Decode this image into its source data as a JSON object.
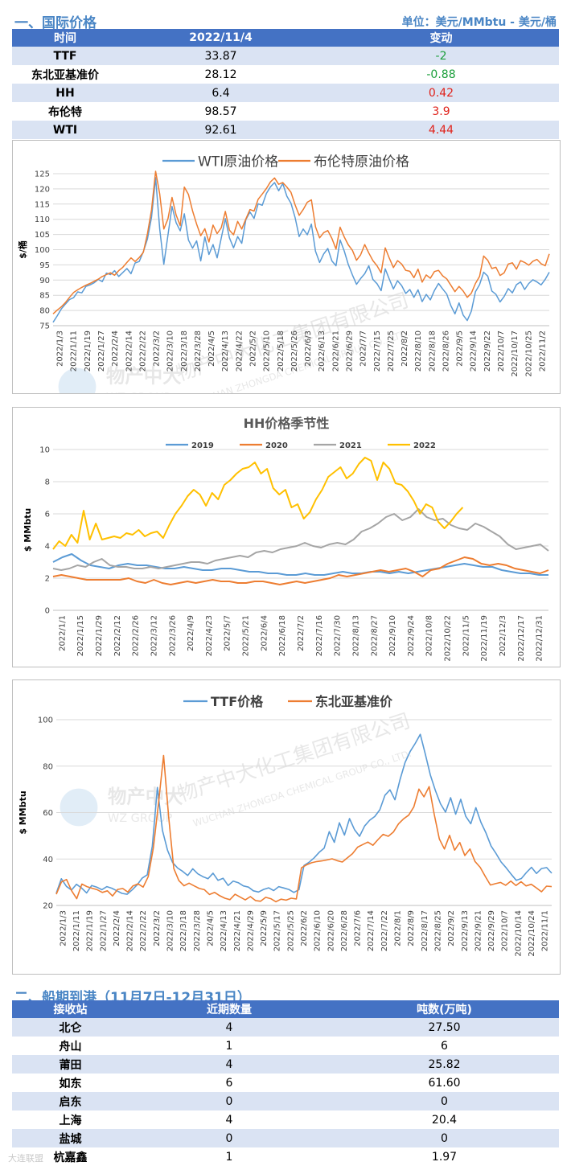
{
  "section1": {
    "title": "一、国际价格",
    "unit": "单位：美元/MMbtu - 美元/桶",
    "headers": [
      "时间",
      "2022/11/4",
      "变动"
    ],
    "rows": [
      {
        "name": "TTF",
        "value": "33.87",
        "change": "-2",
        "dir": "down"
      },
      {
        "name": "东北亚基准价",
        "value": "28.12",
        "change": "-0.88",
        "dir": "down"
      },
      {
        "name": "HH",
        "value": "6.4",
        "change": "0.42",
        "dir": "up"
      },
      {
        "name": "布伦特",
        "value": "98.57",
        "change": "3.9",
        "dir": "up"
      },
      {
        "name": "WTI",
        "value": "92.61",
        "change": "4.44",
        "dir": "up"
      }
    ]
  },
  "colors": {
    "up": "#e0221b",
    "down": "#1a9e3a",
    "blue": "#5b9bd5",
    "orange": "#ed7d31",
    "gray": "#a5a5a5",
    "yellow": "#ffc000"
  },
  "watermark": {
    "cn": "物产中大化工集团有限公司",
    "en": "WUCHAN ZHONGDA CHEMICAL GROUP CO., LTD.",
    "logo": "物产中大",
    "logo_en": "WZ GROUP"
  },
  "chart_data": [
    {
      "id": "oil",
      "type": "line",
      "title": "",
      "ylabel": "$/桶",
      "ylim": [
        75,
        125
      ],
      "yticks": [
        75,
        80,
        85,
        90,
        95,
        100,
        105,
        110,
        115,
        120,
        125
      ],
      "xlabels": [
        "2022/1/3",
        "2022/1/11",
        "2022/1/19",
        "2022/1/27",
        "2022/2/4",
        "2022/2/14",
        "2022/2/22",
        "2022/3/2",
        "2022/3/10",
        "2022/3/18",
        "2022/3/28",
        "2022/4/5",
        "2022/4/13",
        "2022/4/22",
        "2022/5/2",
        "2022/5/10",
        "2022/5/18",
        "2022/5/26",
        "2022/6/3",
        "2022/6/13",
        "2022/6/21",
        "2022/6/29",
        "2022/7/7",
        "2022/7/15",
        "2022/7/25",
        "2022/8/2",
        "2022/8/10",
        "2022/8/18",
        "2022/8/26",
        "2022/9/5",
        "2022/9/14",
        "2022/9/22",
        "2022/10/7",
        "2022/10/17",
        "2022/10/25",
        "2022/11/2"
      ],
      "series": [
        {
          "name": "WTI原油价格",
          "color": "#5b9bd5",
          "values": [
            76.1,
            78.2,
            80.5,
            82.1,
            83.6,
            84.2,
            86.1,
            85.8,
            87.9,
            88.4,
            89.1,
            90.2,
            89.5,
            92.3,
            91.8,
            93.1,
            91.2,
            92.5,
            93.8,
            92.1,
            95.6,
            96.1,
            99.3,
            103.5,
            110.6,
            123.7,
            106.8,
            95.2,
            104.7,
            114.2,
            108.9,
            106.2,
            111.8,
            103.2,
            100.5,
            102.9,
            96.3,
            104.2,
            98.4,
            101.7,
            97.3,
            103.8,
            110.2,
            103.9,
            100.6,
            104.3,
            102.1,
            109.9,
            112.4,
            110.3,
            115.1,
            114.6,
            118.5,
            120.7,
            122.1,
            119.4,
            121.8,
            117.6,
            115.3,
            110.6,
            104.3,
            106.8,
            104.9,
            108.4,
            99.5,
            95.8,
            98.6,
            100.4,
            96.3,
            94.7,
            103.2,
            99.6,
            95.1,
            91.7,
            88.6,
            90.5,
            92.1,
            94.7,
            90.2,
            88.8,
            86.5,
            93.7,
            90.3,
            87.1,
            89.8,
            88.2,
            85.6,
            86.9,
            84.3,
            86.8,
            82.9,
            85.3,
            83.5,
            86.6,
            88.9,
            87.1,
            85.4,
            81.6,
            78.9,
            82.5,
            78.5,
            76.7,
            79.8,
            86.2,
            88.5,
            92.6,
            91.3,
            86.4,
            85.3,
            82.8,
            84.6,
            87.2,
            85.8,
            88.5,
            89.4,
            86.9,
            88.9,
            90.1,
            89.4,
            88.4,
            90.2,
            92.6
          ]
        },
        {
          "name": "布伦特原油价格",
          "color": "#ed7d31",
          "values": [
            78.9,
            80.1,
            81.2,
            82.6,
            84.3,
            85.9,
            86.8,
            87.6,
            88.3,
            88.9,
            89.6,
            90.3,
            91.2,
            91.8,
            92.4,
            91.6,
            93.1,
            94.2,
            95.8,
            97.3,
            96.1,
            97.4,
            99.1,
            105.2,
            113.1,
            125.8,
            118.3,
            106.8,
            110.1,
            117.2,
            111.4,
            107.9,
            120.6,
            118.2,
            112.8,
            108.4,
            104.6,
            106.9,
            102.5,
            108.1,
            105.3,
            107.2,
            112.6,
            106.4,
            104.9,
            109.3,
            106.8,
            110.1,
            113.2,
            112.7,
            116.6,
            118.3,
            120.1,
            122.3,
            123.6,
            121.5,
            122.1,
            120.6,
            118.9,
            114.8,
            111.3,
            113.2,
            115.6,
            116.4,
            107.5,
            103.9,
            105.6,
            106.3,
            103.7,
            100.2,
            107.4,
            104.2,
            101.6,
            99.8,
            96.5,
            98.3,
            101.7,
            98.9,
            96.4,
            94.7,
            92.4,
            100.6,
            97.2,
            94.1,
            96.4,
            95.3,
            93.2,
            92.9,
            90.8,
            93.6,
            89.3,
            91.7,
            90.6,
            92.8,
            93.2,
            91.4,
            90.4,
            88.3,
            86.2,
            87.9,
            86.4,
            84.3,
            85.7,
            88.9,
            91.2,
            97.9,
            96.5,
            93.8,
            94.2,
            91.5,
            92.4,
            95.3,
            95.7,
            93.6,
            96.4,
            95.8,
            94.9,
            96.2,
            96.8,
            95.4,
            94.7,
            98.6
          ]
        }
      ]
    },
    {
      "id": "hh",
      "type": "line",
      "title": "HH价格季节性",
      "ylabel": "$ MMbtu",
      "ylim": [
        0,
        10
      ],
      "yticks": [
        0,
        2,
        4,
        6,
        8,
        10
      ],
      "xlabels": [
        "2022/1/1",
        "2022/1/15",
        "2022/1/29",
        "2022/2/12",
        "2022/2/26",
        "2022/3/12",
        "2022/3/26",
        "2022/4/9",
        "2022/4/23",
        "2022/5/7",
        "2022/5/21",
        "2022/6/4",
        "2022/6/18",
        "2022/7/2",
        "2022/7/16",
        "2022/7/30",
        "2022/8/13",
        "2022/8/27",
        "2022/9/10",
        "2022/9/24",
        "2022/10/8",
        "2022/10/22",
        "2022/11/5",
        "2022/11/19",
        "2022/12/3",
        "2022/12/17",
        "2022/12/31"
      ],
      "series": [
        {
          "name": "2019",
          "color": "#5b9bd5",
          "values": [
            3.0,
            3.3,
            3.5,
            3.1,
            2.8,
            2.7,
            2.6,
            2.8,
            2.9,
            2.8,
            2.8,
            2.7,
            2.6,
            2.6,
            2.7,
            2.6,
            2.5,
            2.5,
            2.6,
            2.6,
            2.5,
            2.4,
            2.4,
            2.3,
            2.3,
            2.2,
            2.2,
            2.3,
            2.2,
            2.2,
            2.3,
            2.4,
            2.3,
            2.3,
            2.4,
            2.4,
            2.3,
            2.4,
            2.3,
            2.4,
            2.5,
            2.6,
            2.7,
            2.8,
            2.9,
            2.8,
            2.7,
            2.7,
            2.5,
            2.4,
            2.3,
            2.3,
            2.2,
            2.2
          ]
        },
        {
          "name": "2020",
          "color": "#ed7d31",
          "values": [
            2.1,
            2.2,
            2.1,
            2.0,
            1.9,
            1.9,
            1.9,
            1.9,
            1.9,
            2.0,
            1.8,
            1.7,
            1.9,
            1.7,
            1.6,
            1.7,
            1.8,
            1.7,
            1.8,
            1.9,
            1.8,
            1.8,
            1.7,
            1.7,
            1.8,
            1.8,
            1.7,
            1.6,
            1.7,
            1.8,
            1.7,
            1.8,
            1.9,
            2.0,
            2.2,
            2.1,
            2.2,
            2.3,
            2.4,
            2.5,
            2.4,
            2.5,
            2.6,
            2.4,
            2.1,
            2.5,
            2.6,
            2.9,
            3.1,
            3.3,
            3.2,
            2.9,
            2.8,
            2.9,
            2.8,
            2.6,
            2.5,
            2.4,
            2.3,
            2.5
          ]
        },
        {
          "name": "2021",
          "color": "#a5a5a5",
          "values": [
            2.6,
            2.5,
            2.6,
            2.8,
            2.7,
            3.0,
            3.2,
            2.8,
            2.7,
            2.7,
            2.6,
            2.6,
            2.7,
            2.6,
            2.7,
            2.8,
            2.9,
            3.0,
            3.0,
            2.9,
            3.1,
            3.2,
            3.3,
            3.4,
            3.3,
            3.6,
            3.7,
            3.6,
            3.8,
            3.9,
            4.0,
            4.2,
            4.0,
            3.9,
            4.1,
            4.2,
            4.1,
            4.4,
            4.9,
            5.1,
            5.4,
            5.8,
            6.0,
            5.6,
            5.8,
            6.3,
            5.8,
            5.6,
            5.7,
            5.3,
            5.1,
            5.0,
            5.4,
            5.2,
            4.9,
            4.6,
            4.1,
            3.8,
            3.9,
            4.0,
            4.1,
            3.7
          ]
        },
        {
          "name": "2022",
          "color": "#ffc000",
          "values": [
            3.8,
            4.3,
            4.0,
            4.7,
            4.2,
            6.2,
            4.4,
            5.4,
            4.4,
            4.5,
            4.6,
            4.5,
            4.8,
            4.7,
            5.0,
            4.6,
            4.8,
            4.9,
            4.5,
            5.3,
            6.0,
            6.5,
            7.1,
            7.5,
            7.2,
            6.5,
            7.3,
            6.9,
            7.8,
            8.1,
            8.5,
            8.8,
            8.9,
            9.2,
            8.5,
            8.8,
            7.6,
            7.2,
            7.5,
            6.4,
            6.6,
            5.7,
            6.1,
            6.9,
            7.5,
            8.3,
            8.6,
            8.9,
            8.2,
            8.5,
            9.1,
            9.5,
            9.3,
            8.1,
            9.2,
            8.8,
            7.9,
            7.8,
            7.4,
            6.8,
            6.0,
            6.6,
            6.4,
            5.5,
            5.1,
            5.5,
            6.0,
            6.4
          ]
        }
      ]
    },
    {
      "id": "ttf",
      "type": "line",
      "title": "",
      "ylabel": "$ MMbtu",
      "ylim": [
        20,
        100
      ],
      "yticks": [
        20,
        40,
        60,
        80,
        100
      ],
      "xlabels": [
        "2022/1/3",
        "2022/1/11",
        "2022/1/19",
        "2022/1/27",
        "2022/2/4",
        "2022/2/14",
        "2022/2/22",
        "2022/3/2",
        "2022/3/10",
        "2022/3/18",
        "2022/3/28",
        "2022/4/5",
        "2022/4/13",
        "2022/4/21",
        "2022/4/29",
        "2022/5/9",
        "2022/5/17",
        "2022/5/25",
        "2022/6/2",
        "2022/6/10",
        "2022/6/20",
        "2022/6/28",
        "2022/7/6",
        "2022/7/14",
        "2022/7/22",
        "2022/8/1",
        "2022/8/9",
        "2022/8/17",
        "2022/8/25",
        "2022/9/2",
        "2022/9/13",
        "2022/9/21",
        "2022/9/29",
        "2022/10/7",
        "2022/10/14",
        "2022/10/24",
        "2022/11/1"
      ],
      "series": [
        {
          "name": "TTF价格",
          "color": "#5b9bd5",
          "values": [
            25.3,
            31.5,
            28.2,
            26.6,
            29.1,
            27.5,
            25.4,
            28.6,
            27.9,
            26.8,
            28.1,
            27.4,
            26.3,
            25.2,
            24.8,
            26.7,
            28.9,
            31.8,
            33.2,
            45.6,
            70.8,
            52.3,
            43.8,
            38.5,
            36.1,
            34.7,
            32.9,
            35.8,
            33.6,
            32.4,
            31.5,
            33.9,
            30.8,
            31.7,
            28.6,
            30.5,
            29.8,
            28.4,
            27.9,
            26.3,
            25.8,
            26.9,
            27.6,
            26.4,
            28.1,
            27.5,
            26.9,
            25.6,
            26.8,
            37.2,
            38.6,
            40.5,
            42.9,
            44.7,
            51.8,
            47.2,
            55.6,
            50.3,
            57.4,
            52.6,
            49.8,
            54.2,
            56.7,
            58.3,
            61.2,
            67.4,
            69.8,
            65.5,
            74.2,
            81.6,
            86.3,
            89.8,
            93.7,
            85.1,
            76.2,
            69.5,
            63.8,
            60.2,
            66.4,
            59.3,
            65.7,
            58.4,
            55.2,
            62.1,
            55.8,
            51.2,
            45.6,
            42.3,
            38.7,
            36.2,
            33.4,
            30.8,
            31.6,
            34.2,
            36.4,
            33.8,
            35.9,
            36.3,
            33.9
          ]
        },
        {
          "name": "东北亚基准价",
          "color": "#ed7d31",
          "values": [
            24.8,
            30.1,
            31.2,
            26.3,
            22.9,
            29.2,
            28.1,
            27.4,
            26.8,
            25.6,
            26.3,
            24.1,
            26.9,
            27.3,
            25.8,
            28.4,
            29.3,
            27.9,
            32.4,
            44.8,
            63.7,
            84.6,
            58.2,
            35.9,
            30.7,
            28.5,
            29.6,
            28.4,
            27.3,
            26.8,
            24.7,
            25.6,
            24.2,
            23.1,
            22.5,
            24.8,
            23.6,
            22.4,
            23.8,
            22.1,
            21.8,
            23.5,
            22.9,
            21.6,
            22.7,
            22.3,
            23.1,
            22.8,
            36.2,
            37.5,
            38.4,
            38.9,
            39.2,
            39.6,
            40.1,
            39.3,
            38.7,
            40.5,
            42.3,
            45.1,
            46.2,
            47.3,
            45.9,
            48.4,
            50.6,
            49.8,
            51.6,
            55.1,
            57.3,
            58.9,
            62.4,
            70.1,
            66.8,
            71.2,
            59.3,
            48.6,
            44.3,
            50.2,
            43.8,
            47.1,
            41.5,
            44.3,
            38.9,
            36.4,
            32.5,
            28.8,
            29.4,
            29.9,
            28.7,
            30.5,
            28.6,
            30.2,
            28.4,
            29.1,
            27.6,
            25.9,
            28.3,
            28.1
          ]
        }
      ]
    }
  ],
  "section2": {
    "title": "二、船期到港（11月7日-12月31日）",
    "headers": [
      "接收站",
      "近期数量",
      "吨数(万吨)"
    ],
    "rows": [
      {
        "name": "北仑",
        "count": "4",
        "tons": "27.50"
      },
      {
        "name": "舟山",
        "count": "1",
        "tons": "6"
      },
      {
        "name": "莆田",
        "count": "4",
        "tons": "25.82"
      },
      {
        "name": "如东",
        "count": "6",
        "tons": "61.60"
      },
      {
        "name": "启东",
        "count": "0",
        "tons": "0"
      },
      {
        "name": "上海",
        "count": "4",
        "tons": "20.4"
      },
      {
        "name": "盐城",
        "count": "0",
        "tons": "0"
      },
      {
        "name": "杭嘉鑫",
        "count": "1",
        "tons": "1.97"
      }
    ]
  },
  "footer_mark": "大连联盟"
}
